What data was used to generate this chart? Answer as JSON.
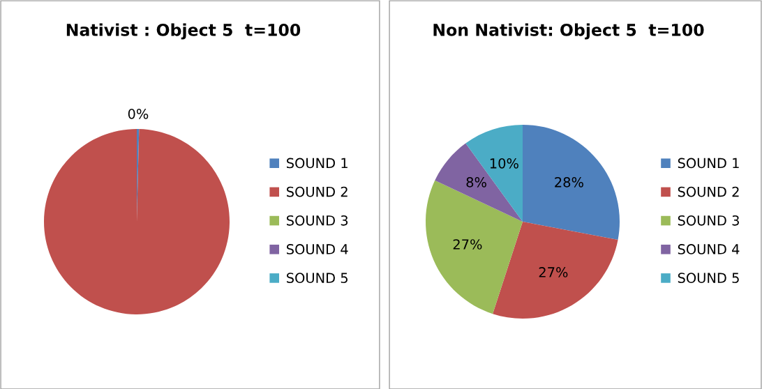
{
  "chart_data": [
    {
      "type": "pie",
      "title": "Nativist : Object 5  t=100",
      "categories": [
        "SOUND 1",
        "SOUND 2",
        "SOUND 3",
        "SOUND 4",
        "SOUND 5"
      ],
      "values": [
        0.4,
        99.6,
        0,
        0,
        0
      ],
      "value_labels": [
        "0%",
        null,
        null,
        null,
        null
      ],
      "colors": [
        "#4f81bd",
        "#c0504d",
        "#9bbb59",
        "#8064a2",
        "#4bacc6"
      ],
      "legend": "right"
    },
    {
      "type": "pie",
      "title": "Non Nativist: Object 5  t=100",
      "categories": [
        "SOUND 1",
        "SOUND 2",
        "SOUND 3",
        "SOUND 4",
        "SOUND 5"
      ],
      "values": [
        28,
        27,
        27,
        8,
        10
      ],
      "value_labels": [
        "28%",
        "27%",
        "27%",
        "8%",
        "10%"
      ],
      "colors": [
        "#4f81bd",
        "#c0504d",
        "#9bbb59",
        "#8064a2",
        "#4bacc6"
      ],
      "legend": "right"
    }
  ]
}
